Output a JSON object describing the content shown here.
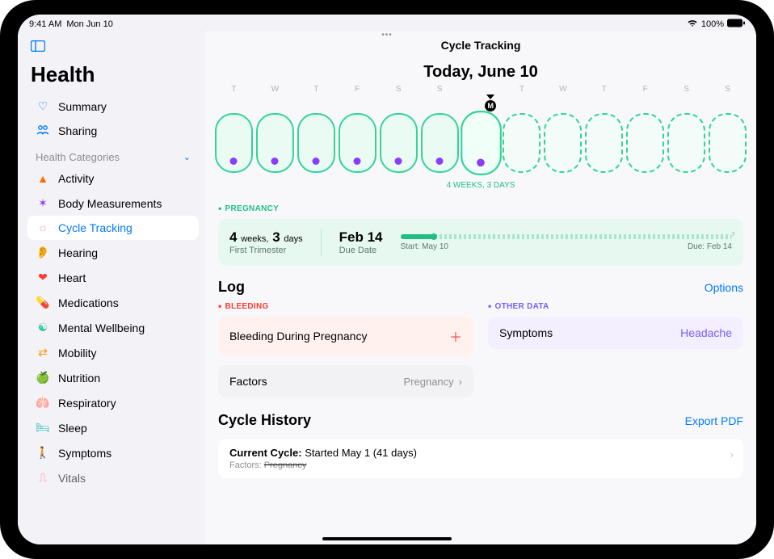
{
  "status_bar": {
    "time": "9:41 AM",
    "date": "Mon Jun 10",
    "battery_percent": "100%"
  },
  "app_title": "Health",
  "sidebar": {
    "summary": "Summary",
    "sharing": "Sharing",
    "section_label": "Health Categories",
    "items": [
      {
        "label": "Activity"
      },
      {
        "label": "Body Measurements"
      },
      {
        "label": "Cycle Tracking"
      },
      {
        "label": "Hearing"
      },
      {
        "label": "Heart"
      },
      {
        "label": "Medications"
      },
      {
        "label": "Mental Wellbeing"
      },
      {
        "label": "Mobility"
      },
      {
        "label": "Nutrition"
      },
      {
        "label": "Respiratory"
      },
      {
        "label": "Sleep"
      },
      {
        "label": "Symptoms"
      },
      {
        "label": "Vitals"
      }
    ]
  },
  "main": {
    "header": "Cycle Tracking",
    "today_label": "Today, June 10",
    "day_letters": [
      "T",
      "W",
      "T",
      "F",
      "S",
      "S",
      "M",
      "T",
      "W",
      "T",
      "F",
      "S",
      "S"
    ],
    "today_index": 6,
    "today_letter": "M",
    "weeks_caption": "4 WEEKS, 3 DAYS",
    "past_dot_color": "#8b3dff",
    "pill_border_color": "#34d39a",
    "pill_fill_color": "#e9fbf3"
  },
  "pregnancy": {
    "eyebrow": "PREGNANCY",
    "weeks_num": "4",
    "weeks_unit": "weeks,",
    "days_num": "3",
    "days_unit": "days",
    "subtitle": "First Trimester",
    "due_value": "Feb 14",
    "due_label": "Due Date",
    "start_label": "Start: May 10",
    "due_end_label": "Due: Feb 14",
    "progress_pct": 10,
    "card_bg": "#e7f8f1",
    "accent": "#1fbf84"
  },
  "log": {
    "title": "Log",
    "options_label": "Options",
    "bleeding_eyebrow": "BLEEDING",
    "bleeding_card": "Bleeding During Pregnancy",
    "factors_label": "Factors",
    "factors_value": "Pregnancy",
    "other_eyebrow": "OTHER DATA",
    "symptoms_label": "Symptoms",
    "symptoms_value": "Headache"
  },
  "history": {
    "title": "Cycle History",
    "export_label": "Export PDF",
    "line1_bold": "Current Cycle:",
    "line1_rest": " Started May 1 (41 days)",
    "line2_label": "Factors:",
    "line2_value": "Pregnancy"
  },
  "colors": {
    "link": "#007aff",
    "bleed_bg": "#fff1ee",
    "symptom_bg": "#f3efff",
    "purple": "#7a5cff",
    "red": "#ff3b30"
  }
}
